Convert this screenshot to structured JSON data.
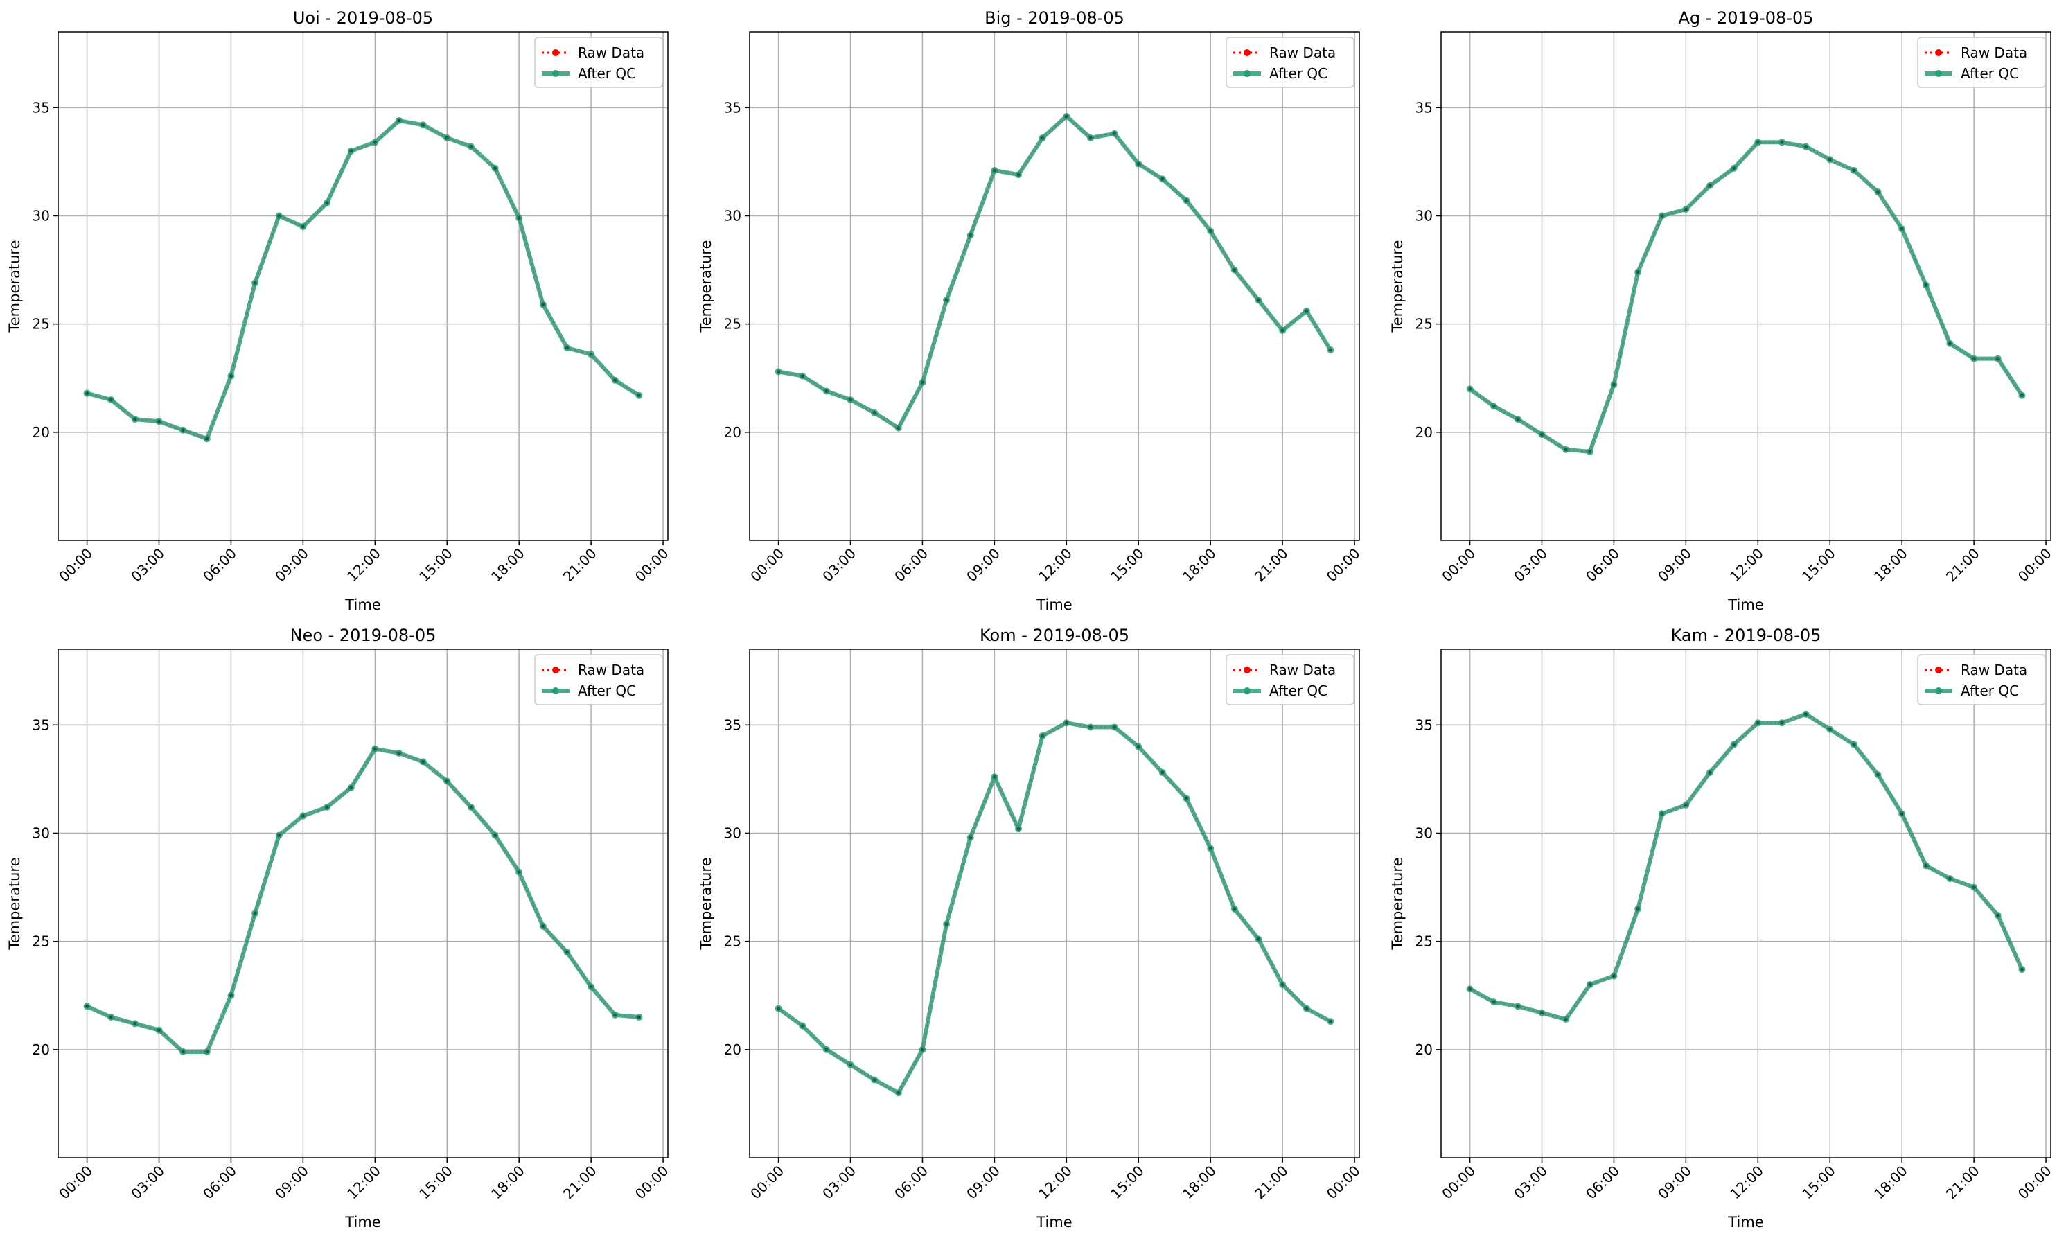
{
  "colors": {
    "raw": "#ff0000",
    "qc": "#2a9d7a",
    "grid": "#b0b0b0",
    "axis": "#000000"
  },
  "chart_data": [
    {
      "type": "line",
      "title": "Uoi - 2019-08-05",
      "xlabel": "Time",
      "ylabel": "Temperature",
      "x_ticks": [
        "00:00",
        "03:00",
        "06:00",
        "09:00",
        "12:00",
        "15:00",
        "18:00",
        "21:00",
        "00:00"
      ],
      "x_tick_hours": [
        0,
        3,
        6,
        9,
        12,
        15,
        18,
        21,
        24
      ],
      "xlim_hours": [
        -1.2,
        24.2
      ],
      "y_ticks": [
        20,
        25,
        30,
        35
      ],
      "ylim": [
        15,
        38.5
      ],
      "grid": true,
      "legend_position": "upper right",
      "x_hours": [
        0,
        1,
        2,
        3,
        4,
        5,
        6,
        7,
        8,
        9,
        10,
        11,
        12,
        13,
        14,
        15,
        16,
        17,
        18,
        19,
        20,
        21,
        22,
        23
      ],
      "series": [
        {
          "name": "Raw Data",
          "style": "dotted-markers",
          "values": [
            21.8,
            21.5,
            20.6,
            20.5,
            20.1,
            19.7,
            22.6,
            26.9,
            30.0,
            29.5,
            30.6,
            33.0,
            33.4,
            34.4,
            34.2,
            33.6,
            33.2,
            32.2,
            29.9,
            25.9,
            23.9,
            23.6,
            22.4,
            21.7
          ]
        },
        {
          "name": "After QC",
          "style": "solid-markers",
          "values": [
            21.8,
            21.5,
            20.6,
            20.5,
            20.1,
            19.7,
            22.6,
            26.9,
            30.0,
            29.5,
            30.6,
            33.0,
            33.4,
            34.4,
            34.2,
            33.6,
            33.2,
            32.2,
            29.9,
            25.9,
            23.9,
            23.6,
            22.4,
            21.7
          ]
        }
      ]
    },
    {
      "type": "line",
      "title": "Big - 2019-08-05",
      "xlabel": "Time",
      "ylabel": "Temperature",
      "x_ticks": [
        "00:00",
        "03:00",
        "06:00",
        "09:00",
        "12:00",
        "15:00",
        "18:00",
        "21:00",
        "00:00"
      ],
      "x_tick_hours": [
        0,
        3,
        6,
        9,
        12,
        15,
        18,
        21,
        24
      ],
      "xlim_hours": [
        -1.2,
        24.2
      ],
      "y_ticks": [
        20,
        25,
        30,
        35
      ],
      "ylim": [
        15,
        38.5
      ],
      "grid": true,
      "legend_position": "upper right",
      "x_hours": [
        0,
        1,
        2,
        3,
        4,
        5,
        6,
        7,
        8,
        9,
        10,
        11,
        12,
        13,
        14,
        15,
        16,
        17,
        18,
        19,
        20,
        21,
        22,
        23
      ],
      "series": [
        {
          "name": "Raw Data",
          "style": "dotted-markers",
          "values": [
            22.8,
            22.6,
            21.9,
            21.5,
            20.9,
            20.2,
            22.3,
            26.1,
            29.1,
            32.1,
            31.9,
            33.6,
            34.6,
            33.6,
            33.8,
            32.4,
            31.7,
            30.7,
            29.3,
            27.5,
            26.1,
            24.7,
            25.6,
            23.8
          ]
        },
        {
          "name": "After QC",
          "style": "solid-markers",
          "values": [
            22.8,
            22.6,
            21.9,
            21.5,
            20.9,
            20.2,
            22.3,
            26.1,
            29.1,
            32.1,
            31.9,
            33.6,
            34.6,
            33.6,
            33.8,
            32.4,
            31.7,
            30.7,
            29.3,
            27.5,
            26.1,
            24.7,
            25.6,
            23.8
          ]
        }
      ]
    },
    {
      "type": "line",
      "title": "Ag - 2019-08-05",
      "xlabel": "Time",
      "ylabel": "Temperature",
      "x_ticks": [
        "00:00",
        "03:00",
        "06:00",
        "09:00",
        "12:00",
        "15:00",
        "18:00",
        "21:00",
        "00:00"
      ],
      "x_tick_hours": [
        0,
        3,
        6,
        9,
        12,
        15,
        18,
        21,
        24
      ],
      "xlim_hours": [
        -1.2,
        24.2
      ],
      "y_ticks": [
        20,
        25,
        30,
        35
      ],
      "ylim": [
        15,
        38.5
      ],
      "grid": true,
      "legend_position": "upper right",
      "x_hours": [
        0,
        1,
        2,
        3,
        4,
        5,
        6,
        7,
        8,
        9,
        10,
        11,
        12,
        13,
        14,
        15,
        16,
        17,
        18,
        19,
        20,
        21,
        22,
        23
      ],
      "series": [
        {
          "name": "Raw Data",
          "style": "dotted-markers",
          "values": [
            22.0,
            21.2,
            20.6,
            19.9,
            19.2,
            19.1,
            22.2,
            27.4,
            30.0,
            30.3,
            31.4,
            32.2,
            33.4,
            33.4,
            33.2,
            32.6,
            32.1,
            31.1,
            29.4,
            26.8,
            24.1,
            23.4,
            23.4,
            21.7
          ]
        },
        {
          "name": "After QC",
          "style": "solid-markers",
          "values": [
            22.0,
            21.2,
            20.6,
            19.9,
            19.2,
            19.1,
            22.2,
            27.4,
            30.0,
            30.3,
            31.4,
            32.2,
            33.4,
            33.4,
            33.2,
            32.6,
            32.1,
            31.1,
            29.4,
            26.8,
            24.1,
            23.4,
            23.4,
            21.7
          ]
        }
      ]
    },
    {
      "type": "line",
      "title": "Neo - 2019-08-05",
      "xlabel": "Time",
      "ylabel": "Temperature",
      "x_ticks": [
        "00:00",
        "03:00",
        "06:00",
        "09:00",
        "12:00",
        "15:00",
        "18:00",
        "21:00",
        "00:00"
      ],
      "x_tick_hours": [
        0,
        3,
        6,
        9,
        12,
        15,
        18,
        21,
        24
      ],
      "xlim_hours": [
        -1.2,
        24.2
      ],
      "y_ticks": [
        20,
        25,
        30,
        35
      ],
      "ylim": [
        15,
        38.5
      ],
      "grid": true,
      "legend_position": "upper right",
      "x_hours": [
        0,
        1,
        2,
        3,
        4,
        5,
        6,
        7,
        8,
        9,
        10,
        11,
        12,
        13,
        14,
        15,
        16,
        17,
        18,
        19,
        20,
        21,
        22,
        23
      ],
      "series": [
        {
          "name": "Raw Data",
          "style": "dotted-markers",
          "values": [
            22.0,
            21.5,
            21.2,
            20.9,
            19.9,
            19.9,
            22.5,
            26.3,
            29.9,
            30.8,
            31.2,
            32.1,
            33.9,
            33.7,
            33.3,
            32.4,
            31.2,
            29.9,
            28.2,
            25.7,
            24.5,
            22.9,
            21.6,
            21.5
          ]
        },
        {
          "name": "After QC",
          "style": "solid-markers",
          "values": [
            22.0,
            21.5,
            21.2,
            20.9,
            19.9,
            19.9,
            22.5,
            26.3,
            29.9,
            30.8,
            31.2,
            32.1,
            33.9,
            33.7,
            33.3,
            32.4,
            31.2,
            29.9,
            28.2,
            25.7,
            24.5,
            22.9,
            21.6,
            21.5
          ]
        }
      ]
    },
    {
      "type": "line",
      "title": "Kom - 2019-08-05",
      "xlabel": "Time",
      "ylabel": "Temperature",
      "x_ticks": [
        "00:00",
        "03:00",
        "06:00",
        "09:00",
        "12:00",
        "15:00",
        "18:00",
        "21:00",
        "00:00"
      ],
      "x_tick_hours": [
        0,
        3,
        6,
        9,
        12,
        15,
        18,
        21,
        24
      ],
      "xlim_hours": [
        -1.2,
        24.2
      ],
      "y_ticks": [
        20,
        25,
        30,
        35
      ],
      "ylim": [
        15,
        38.5
      ],
      "grid": true,
      "legend_position": "upper right",
      "x_hours": [
        0,
        1,
        2,
        3,
        4,
        5,
        6,
        7,
        8,
        9,
        10,
        11,
        12,
        13,
        14,
        15,
        16,
        17,
        18,
        19,
        20,
        21,
        22,
        23
      ],
      "series": [
        {
          "name": "Raw Data",
          "style": "dotted-markers",
          "values": [
            21.9,
            21.1,
            20.0,
            19.3,
            18.6,
            18.0,
            20.0,
            25.8,
            29.8,
            32.6,
            30.2,
            34.5,
            35.1,
            34.9,
            34.9,
            34.0,
            32.8,
            31.6,
            29.3,
            26.5,
            25.1,
            23.0,
            21.9,
            21.3
          ]
        },
        {
          "name": "After QC",
          "style": "solid-markers",
          "values": [
            21.9,
            21.1,
            20.0,
            19.3,
            18.6,
            18.0,
            20.0,
            25.8,
            29.8,
            32.6,
            30.2,
            34.5,
            35.1,
            34.9,
            34.9,
            34.0,
            32.8,
            31.6,
            29.3,
            26.5,
            25.1,
            23.0,
            21.9,
            21.3
          ]
        }
      ]
    },
    {
      "type": "line",
      "title": "Kam - 2019-08-05",
      "xlabel": "Time",
      "ylabel": "Temperature",
      "x_ticks": [
        "00:00",
        "03:00",
        "06:00",
        "09:00",
        "12:00",
        "15:00",
        "18:00",
        "21:00",
        "00:00"
      ],
      "x_tick_hours": [
        0,
        3,
        6,
        9,
        12,
        15,
        18,
        21,
        24
      ],
      "xlim_hours": [
        -1.2,
        24.2
      ],
      "y_ticks": [
        20,
        25,
        30,
        35
      ],
      "ylim": [
        15,
        38.5
      ],
      "grid": true,
      "legend_position": "upper right",
      "x_hours": [
        0,
        1,
        2,
        3,
        4,
        5,
        6,
        7,
        8,
        9,
        10,
        11,
        12,
        13,
        14,
        15,
        16,
        17,
        18,
        19,
        20,
        21,
        22,
        23
      ],
      "series": [
        {
          "name": "Raw Data",
          "style": "dotted-markers",
          "values": [
            22.8,
            22.2,
            22.0,
            21.7,
            21.4,
            23.0,
            23.4,
            26.5,
            30.9,
            31.3,
            32.8,
            34.1,
            35.1,
            35.1,
            35.5,
            34.8,
            34.1,
            32.7,
            30.9,
            28.5,
            27.9,
            27.5,
            26.2,
            23.7
          ]
        },
        {
          "name": "After QC",
          "style": "solid-markers",
          "values": [
            22.8,
            22.2,
            22.0,
            21.7,
            21.4,
            23.0,
            23.4,
            26.5,
            30.9,
            31.3,
            32.8,
            34.1,
            35.1,
            35.1,
            35.5,
            34.8,
            34.1,
            32.7,
            30.9,
            28.5,
            27.9,
            27.5,
            26.2,
            23.7
          ]
        }
      ]
    }
  ]
}
